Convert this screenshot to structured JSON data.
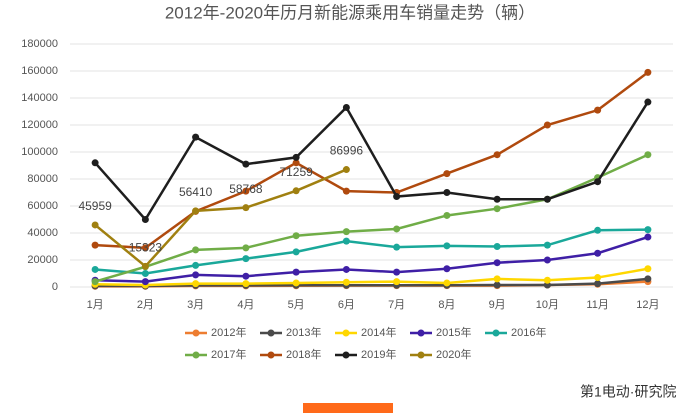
{
  "chart_data": {
    "type": "line",
    "title": "2012年-2020年历月新能源乘用车销量走势（辆）",
    "categories": [
      "1月",
      "2月",
      "3月",
      "4月",
      "5月",
      "6月",
      "7月",
      "8月",
      "9月",
      "10月",
      "11月",
      "12月"
    ],
    "ylim": [
      0,
      180000
    ],
    "yticks": [
      0,
      20000,
      40000,
      60000,
      80000,
      100000,
      120000,
      140000,
      160000,
      180000
    ],
    "grid": true,
    "legend": "bottom",
    "series": [
      {
        "name": "2012年",
        "color": "#ed7d31",
        "values": [
          500,
          500,
          800,
          800,
          900,
          1000,
          1000,
          1000,
          1000,
          1500,
          2000,
          4000
        ]
      },
      {
        "name": "2013年",
        "color": "#4a4a4a",
        "values": [
          800,
          700,
          1200,
          1200,
          1300,
          1300,
          1300,
          1300,
          1500,
          1500,
          2500,
          6000
        ]
      },
      {
        "name": "2014年",
        "color": "#ffd700",
        "values": [
          2000,
          1500,
          2500,
          2500,
          3000,
          3500,
          4000,
          3000,
          6000,
          5000,
          7000,
          13500
        ]
      },
      {
        "name": "2015年",
        "color": "#3f1fa6",
        "values": [
          5000,
          4000,
          9000,
          8000,
          11000,
          13000,
          11000,
          13500,
          18000,
          20000,
          25000,
          37000
        ]
      },
      {
        "name": "2016年",
        "color": "#1aa89a",
        "values": [
          13000,
          10000,
          16000,
          21000,
          26000,
          34000,
          29500,
          30500,
          30000,
          31000,
          42000,
          42500
        ]
      },
      {
        "name": "2017年",
        "color": "#70ad47",
        "values": [
          4000,
          15000,
          27500,
          29000,
          38000,
          41000,
          43000,
          53000,
          58000,
          65000,
          81000,
          98000
        ]
      },
      {
        "name": "2018年",
        "color": "#b04a0e",
        "values": [
          31000,
          29000,
          56000,
          71000,
          92000,
          71000,
          70000,
          84000,
          98000,
          120000,
          131000,
          159000
        ]
      },
      {
        "name": "2019年",
        "color": "#1e1e1e",
        "values": [
          92000,
          50000,
          111000,
          91000,
          96000,
          133000,
          67000,
          70000,
          65000,
          65000,
          78000,
          137000
        ]
      },
      {
        "name": "2020年",
        "color": "#a08010",
        "values": [
          45959,
          15323,
          56410,
          58768,
          71259,
          86996,
          null,
          null,
          null,
          null,
          null,
          null
        ]
      }
    ],
    "labeled_series": 8,
    "footer": "第1电动·研究院"
  }
}
